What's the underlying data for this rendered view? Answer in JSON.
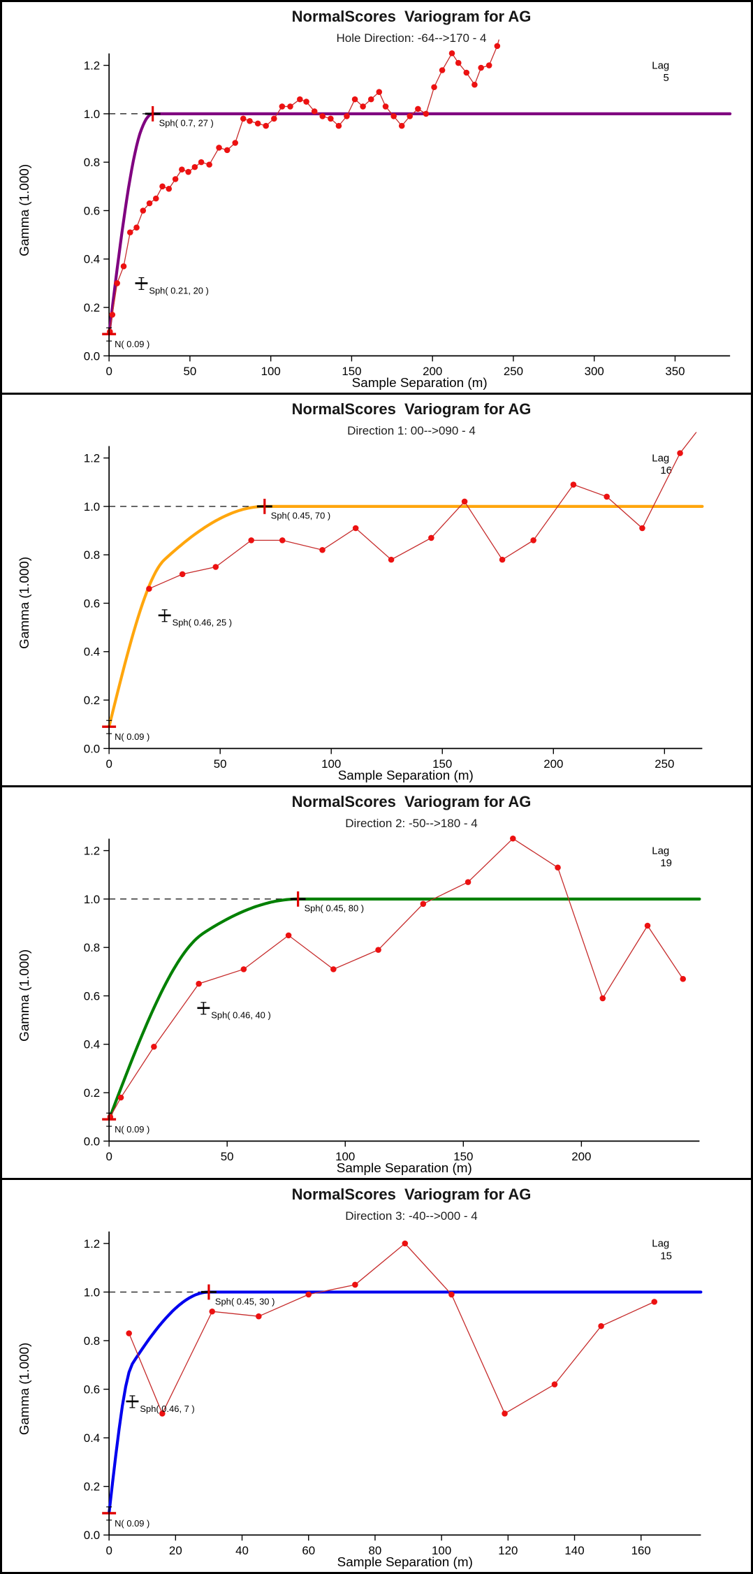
{
  "style": {
    "point_color": "#EC1111",
    "line_color": "#C62B2B",
    "marker_red": "#E00000",
    "lag_color": "#8A8A8A",
    "dashed_color": "#222222",
    "axis_color": "#000000",
    "background": "#FFFFFF"
  },
  "chart_data": [
    {
      "type": "scatter",
      "title": "NormalScores  Variogram for AG",
      "subtitle": "Hole Direction: -64-->170 - 4",
      "lag_label": "Lag",
      "lag_value": "5",
      "x_axis_title": "Sample Separation (m)",
      "y_axis_title": "Gamma (1.000)",
      "x_axis_max": 384,
      "x_ticks": [
        0,
        50,
        100,
        150,
        200,
        250,
        300,
        350
      ],
      "y_ticks": [
        "0.0",
        "0.2",
        "0.4",
        "0.6",
        "0.8",
        "1.0",
        "1.2"
      ],
      "y_axis_range": [
        0,
        1.25
      ],
      "legend_position": "top-right",
      "grid": false,
      "model": {
        "type": "spherical",
        "color": "#800080",
        "nugget": 0.09,
        "nugget_label": "N( 0.09 )",
        "total_sill": 1.0,
        "structures": [
          {
            "c": 0.21,
            "a": 20,
            "label": "Sph( 0.21, 20 )"
          },
          {
            "c": 0.7,
            "a": 27,
            "label": "Sph( 0.7, 27 )"
          }
        ]
      },
      "points": {
        "x": [
          0.5,
          2,
          5,
          9,
          13,
          17,
          21,
          25,
          29,
          33,
          37,
          41,
          45,
          49,
          53,
          57,
          62,
          68,
          73,
          78,
          83,
          87,
          92,
          97,
          102,
          107,
          112,
          118,
          122,
          127,
          132,
          137,
          142,
          147,
          152,
          157,
          162,
          167,
          171,
          176,
          181,
          186,
          191,
          196,
          201,
          206,
          212,
          216,
          221,
          226,
          230,
          235,
          240,
          244
        ],
        "gamma": [
          0.1,
          0.17,
          0.3,
          0.37,
          0.51,
          0.53,
          0.6,
          0.63,
          0.65,
          0.7,
          0.69,
          0.73,
          0.77,
          0.76,
          0.78,
          0.8,
          0.79,
          0.86,
          0.85,
          0.88,
          0.98,
          0.97,
          0.96,
          0.95,
          0.98,
          1.03,
          1.03,
          1.06,
          1.05,
          1.01,
          0.99,
          0.98,
          0.95,
          0.99,
          1.06,
          1.03,
          1.06,
          1.09,
          1.03,
          0.99,
          0.95,
          0.99,
          1.02,
          1.0,
          1.11,
          1.18,
          1.25,
          1.21,
          1.17,
          1.12,
          1.19,
          1.2,
          1.28,
          1.38
        ]
      }
    },
    {
      "type": "scatter",
      "title": "NormalScores  Variogram for AG",
      "subtitle": "Direction 1: 00-->090 - 4",
      "lag_label": "Lag",
      "lag_value": "16",
      "x_axis_title": "Sample Separation (m)",
      "y_axis_title": "Gamma (1.000)",
      "x_axis_max": 267,
      "x_ticks": [
        0,
        50,
        100,
        150,
        200,
        250
      ],
      "y_ticks": [
        "0.0",
        "0.2",
        "0.4",
        "0.6",
        "0.8",
        "1.0",
        "1.2"
      ],
      "y_axis_range": [
        0,
        1.25
      ],
      "legend_position": "top-right",
      "grid": false,
      "model": {
        "type": "spherical",
        "color": "#FFA60D",
        "nugget": 0.09,
        "nugget_label": "N( 0.09 )",
        "total_sill": 1.0,
        "structures": [
          {
            "c": 0.46,
            "a": 25,
            "label": "Sph( 0.46, 25 )"
          },
          {
            "c": 0.45,
            "a": 70,
            "label": "Sph( 0.45, 70 )"
          }
        ]
      },
      "points": {
        "x": [
          18,
          33,
          48,
          64,
          78,
          96,
          111,
          127,
          145,
          160,
          177,
          191,
          209,
          224,
          240,
          257,
          268
        ],
        "gamma": [
          0.66,
          0.72,
          0.75,
          0.86,
          0.86,
          0.82,
          0.91,
          0.78,
          0.87,
          1.02,
          0.78,
          0.86,
          1.09,
          1.04,
          0.91,
          1.22,
          1.35
        ]
      }
    },
    {
      "type": "scatter",
      "title": "NormalScores  Variogram for AG",
      "subtitle": "Direction 2: -50-->180 - 4",
      "lag_label": "Lag",
      "lag_value": "19",
      "x_axis_title": "Sample Separation (m)",
      "y_axis_title": "Gamma (1.000)",
      "x_axis_max": 250,
      "x_ticks": [
        0,
        50,
        100,
        150,
        200
      ],
      "y_ticks": [
        "0.0",
        "0.2",
        "0.4",
        "0.6",
        "0.8",
        "1.0",
        "1.2"
      ],
      "y_axis_range": [
        0,
        1.25
      ],
      "legend_position": "top-right",
      "grid": false,
      "model": {
        "type": "spherical",
        "color": "#008000",
        "nugget": 0.09,
        "nugget_label": "N( 0.09 )",
        "total_sill": 1.0,
        "structures": [
          {
            "c": 0.46,
            "a": 40,
            "label": "Sph( 0.46, 40 )"
          },
          {
            "c": 0.45,
            "a": 80,
            "label": "Sph( 0.45, 80 )"
          }
        ]
      },
      "points": {
        "x": [
          0.5,
          5,
          19,
          38,
          57,
          76,
          95,
          114,
          133,
          152,
          171,
          190,
          209,
          228,
          243
        ],
        "gamma": [
          0.1,
          0.18,
          0.39,
          0.65,
          0.71,
          0.85,
          0.71,
          0.79,
          0.98,
          1.07,
          1.25,
          1.13,
          0.59,
          0.89,
          0.67
        ]
      }
    },
    {
      "type": "scatter",
      "title": "NormalScores  Variogram for AG",
      "subtitle": "Direction 3: -40-->000 - 4",
      "lag_label": "Lag",
      "lag_value": "15",
      "x_axis_title": "Sample Separation (m)",
      "y_axis_title": "Gamma (1.000)",
      "x_axis_max": 178,
      "x_ticks": [
        0,
        20,
        40,
        60,
        80,
        100,
        120,
        140,
        160
      ],
      "y_ticks": [
        "0.0",
        "0.2",
        "0.4",
        "0.6",
        "0.8",
        "1.0",
        "1.2"
      ],
      "y_axis_range": [
        0,
        1.25
      ],
      "legend_position": "top-right",
      "grid": false,
      "model": {
        "type": "spherical",
        "color": "#0000EE",
        "nugget": 0.09,
        "nugget_label": "N( 0.09 )",
        "total_sill": 1.0,
        "structures": [
          {
            "c": 0.46,
            "a": 7,
            "label": "Sph( 0.46, 7 )"
          },
          {
            "c": 0.45,
            "a": 30,
            "label": "Sph( 0.45, 30 )"
          }
        ]
      },
      "points": {
        "x": [
          6,
          16,
          31,
          45,
          60,
          74,
          89,
          103,
          119,
          134,
          148,
          164
        ],
        "gamma": [
          0.83,
          0.5,
          0.92,
          0.9,
          0.99,
          1.03,
          1.2,
          0.99,
          0.5,
          0.62,
          0.86,
          0.96
        ]
      }
    }
  ]
}
